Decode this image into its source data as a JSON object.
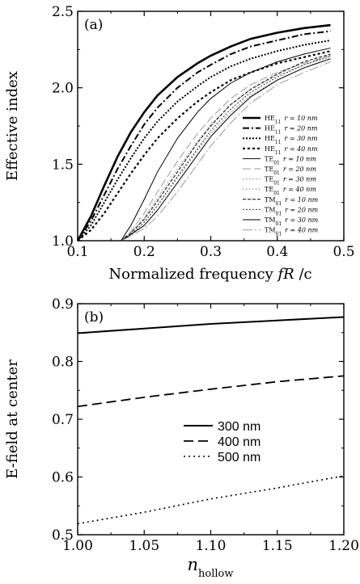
{
  "chart_data": [
    {
      "panel": "(a)",
      "type": "line",
      "xlabel_main": "Normalized frequency ",
      "xlabel_var": "fR",
      "xlabel_tail": " /c",
      "ylabel": "Effective index",
      "xlim": [
        0.1,
        0.5
      ],
      "ylim": [
        1.0,
        2.5
      ],
      "xticks": [
        0.1,
        0.2,
        0.3,
        0.4,
        0.5
      ],
      "xtick_labels": [
        "0.1",
        "0.2",
        "0.3",
        "0.4",
        "0.5"
      ],
      "yticks": [
        1.0,
        1.5,
        2.0,
        2.5
      ],
      "ytick_labels": [
        "1.0",
        "1.5",
        "2.0",
        "2.5"
      ],
      "legend_position": "right",
      "series": [
        {
          "name": "HE11 r = 10 nm",
          "mode": "HE",
          "sub": "11",
          "r": "r = 10 nm",
          "color": "#000000",
          "width": 2.6,
          "dash": "",
          "x": [
            0.1,
            0.12,
            0.14,
            0.16,
            0.18,
            0.2,
            0.22,
            0.25,
            0.28,
            0.3,
            0.33,
            0.36,
            0.4,
            0.44,
            0.48
          ],
          "y": [
            1.0,
            1.16,
            1.36,
            1.55,
            1.71,
            1.84,
            1.95,
            2.07,
            2.16,
            2.21,
            2.27,
            2.32,
            2.36,
            2.39,
            2.41
          ]
        },
        {
          "name": "HE11 r = 20 nm",
          "mode": "HE",
          "sub": "11",
          "r": "r = 20 nm",
          "color": "#000000",
          "width": 2.0,
          "dash": "8,3,2,3",
          "x": [
            0.1,
            0.12,
            0.14,
            0.16,
            0.18,
            0.2,
            0.22,
            0.25,
            0.28,
            0.3,
            0.33,
            0.36,
            0.4,
            0.44,
            0.48
          ],
          "y": [
            1.0,
            1.13,
            1.3,
            1.47,
            1.62,
            1.76,
            1.87,
            2.0,
            2.1,
            2.15,
            2.22,
            2.27,
            2.31,
            2.35,
            2.37
          ]
        },
        {
          "name": "HE11 r = 30 nm",
          "mode": "HE",
          "sub": "11",
          "r": "r = 30 nm",
          "color": "#000000",
          "width": 2.0,
          "dash": "2,2",
          "x": [
            0.1,
            0.12,
            0.14,
            0.16,
            0.18,
            0.2,
            0.22,
            0.25,
            0.28,
            0.3,
            0.33,
            0.36,
            0.4,
            0.44,
            0.48
          ],
          "y": [
            1.0,
            1.1,
            1.25,
            1.4,
            1.54,
            1.67,
            1.78,
            1.91,
            2.01,
            2.07,
            2.14,
            2.19,
            2.24,
            2.28,
            2.31
          ]
        },
        {
          "name": "HE11 r = 40 nm",
          "mode": "HE",
          "sub": "11",
          "r": "r = 40 nm",
          "color": "#000000",
          "width": 2.2,
          "dash": "3,3",
          "x": [
            0.1,
            0.12,
            0.14,
            0.16,
            0.18,
            0.2,
            0.22,
            0.25,
            0.28,
            0.3,
            0.33,
            0.36,
            0.4,
            0.44,
            0.48
          ],
          "y": [
            1.0,
            1.07,
            1.18,
            1.31,
            1.44,
            1.56,
            1.67,
            1.8,
            1.91,
            1.97,
            2.05,
            2.1,
            2.16,
            2.2,
            2.24
          ]
        },
        {
          "name": "TE01 r = 10 nm",
          "mode": "TE",
          "sub": "01",
          "r": "r = 10 nm",
          "color": "#000000",
          "width": 1.0,
          "dash": "",
          "x": [
            0.165,
            0.18,
            0.2,
            0.22,
            0.25,
            0.28,
            0.3,
            0.33,
            0.36,
            0.4,
            0.44,
            0.48
          ],
          "y": [
            1.0,
            1.1,
            1.27,
            1.45,
            1.67,
            1.84,
            1.93,
            2.03,
            2.1,
            2.17,
            2.22,
            2.26
          ]
        },
        {
          "name": "TE01 r = 20 nm",
          "mode": "TE",
          "sub": "01",
          "r": "r = 20 nm",
          "color": "#9a9a9a",
          "width": 1.0,
          "dash": "10,4",
          "x": [
            0.165,
            0.18,
            0.2,
            0.22,
            0.25,
            0.28,
            0.3,
            0.33,
            0.36,
            0.4,
            0.44,
            0.48
          ],
          "y": [
            1.0,
            1.06,
            1.18,
            1.32,
            1.52,
            1.7,
            1.8,
            1.93,
            2.02,
            2.1,
            2.16,
            2.21
          ]
        },
        {
          "name": "TE01 r = 30 nm",
          "mode": "TE",
          "sub": "01",
          "r": "r = 30 nm",
          "color": "#9a9a9a",
          "width": 1.0,
          "dash": "2,2",
          "x": [
            0.165,
            0.18,
            0.2,
            0.22,
            0.25,
            0.28,
            0.3,
            0.33,
            0.36,
            0.4,
            0.44,
            0.48
          ],
          "y": [
            1.0,
            1.05,
            1.15,
            1.28,
            1.47,
            1.65,
            1.76,
            1.89,
            1.99,
            2.08,
            2.15,
            2.2
          ]
        },
        {
          "name": "TE01 r = 40 nm",
          "mode": "TE",
          "sub": "01",
          "r": "r = 40 nm",
          "color": "#555555",
          "width": 1.2,
          "dash": "1,3",
          "x": [
            0.165,
            0.18,
            0.2,
            0.22,
            0.25,
            0.28,
            0.3,
            0.33,
            0.36,
            0.4,
            0.44,
            0.48
          ],
          "y": [
            1.0,
            1.04,
            1.12,
            1.23,
            1.41,
            1.59,
            1.7,
            1.84,
            1.95,
            2.05,
            2.13,
            2.19
          ]
        },
        {
          "name": "TM01 r = 10 nm",
          "mode": "TM",
          "sub": "01",
          "r": "r = 10 nm",
          "color": "#000000",
          "width": 1.0,
          "dash": "4,2",
          "x": [
            0.165,
            0.18,
            0.2,
            0.22,
            0.25,
            0.28,
            0.3,
            0.33,
            0.36,
            0.4,
            0.44,
            0.48
          ],
          "y": [
            1.0,
            1.05,
            1.14,
            1.26,
            1.45,
            1.64,
            1.75,
            1.89,
            1.99,
            2.09,
            2.17,
            2.22
          ]
        },
        {
          "name": "TM01 r = 20 nm",
          "mode": "TM",
          "sub": "01",
          "r": "r = 20 nm",
          "color": "#333333",
          "width": 1.0,
          "dash": "2,2",
          "x": [
            0.165,
            0.18,
            0.2,
            0.22,
            0.25,
            0.28,
            0.3,
            0.33,
            0.36,
            0.4,
            0.44,
            0.48
          ],
          "y": [
            1.0,
            1.04,
            1.12,
            1.23,
            1.42,
            1.6,
            1.72,
            1.86,
            1.97,
            2.07,
            2.15,
            2.21
          ]
        },
        {
          "name": "TM01 r = 30 nm",
          "mode": "TM",
          "sub": "01",
          "r": "r = 30 nm",
          "color": "#000000",
          "width": 1.0,
          "dash": "",
          "x": [
            0.165,
            0.18,
            0.2,
            0.22,
            0.25,
            0.28,
            0.3,
            0.33,
            0.36,
            0.4,
            0.44,
            0.48
          ],
          "y": [
            1.0,
            1.04,
            1.1,
            1.2,
            1.38,
            1.56,
            1.68,
            1.82,
            1.94,
            2.05,
            2.13,
            2.19
          ]
        },
        {
          "name": "TM01 r = 40 nm",
          "mode": "TM",
          "sub": "01",
          "r": "r = 40 nm",
          "color": "#9a9a9a",
          "width": 1.0,
          "dash": "12,3,2,3",
          "x": [
            0.165,
            0.18,
            0.2,
            0.22,
            0.25,
            0.28,
            0.3,
            0.33,
            0.36,
            0.4,
            0.44,
            0.48
          ],
          "y": [
            1.0,
            1.03,
            1.08,
            1.16,
            1.32,
            1.5,
            1.62,
            1.77,
            1.9,
            2.02,
            2.1,
            2.17
          ]
        }
      ]
    },
    {
      "panel": "(b)",
      "type": "line",
      "xlabel_var": "n",
      "xlabel_sub": "hollow",
      "ylabel": "E-field at center",
      "xlim": [
        1.0,
        1.2
      ],
      "ylim": [
        0.5,
        0.9
      ],
      "xticks": [
        1.0,
        1.05,
        1.1,
        1.15,
        1.2
      ],
      "xtick_labels": [
        "1.00",
        "1.05",
        "1.10",
        "1.15",
        "1.20"
      ],
      "yticks": [
        0.5,
        0.6,
        0.7,
        0.8,
        0.9
      ],
      "ytick_labels": [
        "0.5",
        "0.6",
        "0.7",
        "0.8",
        "0.9"
      ],
      "legend_position": "center",
      "series": [
        {
          "name": "300 nm",
          "color": "#000000",
          "width": 2.0,
          "dash": "",
          "x": [
            1.0,
            1.05,
            1.1,
            1.15,
            1.2
          ],
          "y": [
            0.849,
            0.857,
            0.865,
            0.871,
            0.877
          ]
        },
        {
          "name": "400 nm",
          "color": "#000000",
          "width": 1.8,
          "dash": "12,6",
          "x": [
            1.0,
            1.05,
            1.1,
            1.15,
            1.2
          ],
          "y": [
            0.722,
            0.738,
            0.752,
            0.765,
            0.775
          ]
        },
        {
          "name": "500 nm",
          "color": "#000000",
          "width": 1.6,
          "dash": "2,4",
          "x": [
            1.0,
            1.05,
            1.1,
            1.15,
            1.2
          ],
          "y": [
            0.519,
            0.539,
            0.562,
            0.581,
            0.602
          ]
        }
      ]
    }
  ]
}
